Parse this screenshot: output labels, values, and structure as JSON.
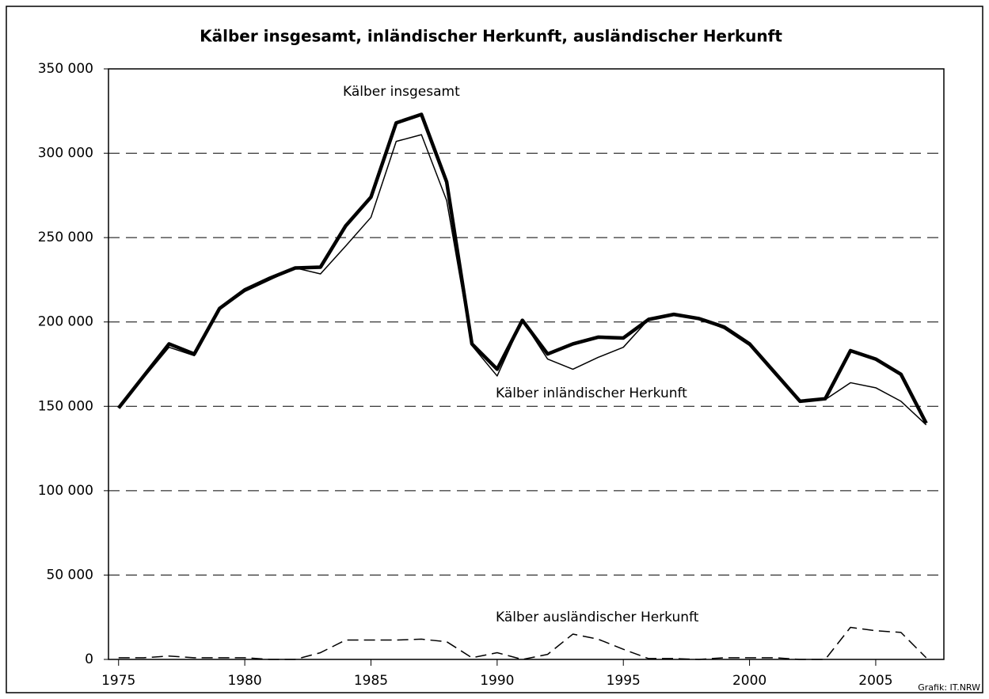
{
  "chart_data": {
    "type": "line",
    "title": "Kälber insgesamt, inländischer Herkunft, ausländischer Herkunft",
    "source": "Grafik: IT.NRW",
    "x": [
      1975,
      1976,
      1977,
      1978,
      1979,
      1980,
      1981,
      1982,
      1983,
      1984,
      1985,
      1986,
      1987,
      1988,
      1989,
      1990,
      1991,
      1992,
      1993,
      1994,
      1995,
      1996,
      1997,
      1998,
      1999,
      2000,
      2001,
      2002,
      2003,
      2004,
      2005,
      2006,
      2007
    ],
    "series": [
      {
        "name": "Kälber insgesamt",
        "color": "#000000",
        "line_width": 4.5,
        "dashed": false,
        "values": [
          149000,
          168000,
          187000,
          181000,
          208000,
          219000,
          226000,
          232000,
          232500,
          257000,
          274000,
          318000,
          323000,
          283000,
          187000,
          172000,
          201000,
          181000,
          187000,
          191000,
          190500,
          201500,
          204500,
          202000,
          197000,
          187000,
          170000,
          153000,
          154500,
          183000,
          178000,
          169000,
          140000
        ]
      },
      {
        "name": "Kälber inländischer Herkunft",
        "color": "#000000",
        "line_width": 1.5,
        "dashed": false,
        "values": [
          149000,
          167000,
          185000,
          180000,
          207500,
          218000,
          225000,
          232000,
          228500,
          245000,
          262000,
          307000,
          311000,
          272000,
          186000,
          168000,
          201000,
          178000,
          172000,
          179000,
          185000,
          201500,
          204000,
          202000,
          196000,
          186000,
          169000,
          153000,
          154000,
          164000,
          161000,
          153000,
          139000
        ]
      },
      {
        "name": "Kälber ausländischer Herkunft",
        "color": "#000000",
        "line_width": 1.5,
        "dashed": true,
        "values": [
          1000,
          1000,
          2000,
          1000,
          1000,
          1000,
          0,
          0,
          4000,
          11500,
          11500,
          11500,
          12000,
          10500,
          1000,
          4000,
          0,
          3000,
          15000,
          12000,
          6000,
          500,
          500,
          0,
          1000,
          1000,
          1000,
          0,
          0,
          19000,
          17000,
          16000,
          1000
        ]
      }
    ],
    "xlim": [
      1974.6,
      2007.7
    ],
    "xticks": [
      1975,
      1980,
      1985,
      1990,
      1995,
      2000,
      2005
    ],
    "ylim": [
      0,
      350000
    ],
    "yticks": [
      0,
      {
        "value": 50000,
        "label": "50 000"
      },
      {
        "value": 100000,
        "label": "100 000"
      },
      {
        "value": 150000,
        "label": "150 000"
      },
      {
        "value": 200000,
        "label": "200 000"
      },
      {
        "value": 250000,
        "label": "250 000"
      },
      {
        "value": 300000,
        "label": "300 000"
      },
      {
        "value": 350000,
        "label": "350 000"
      }
    ],
    "grid": true
  }
}
